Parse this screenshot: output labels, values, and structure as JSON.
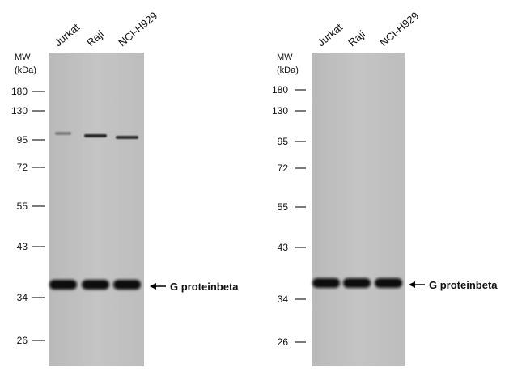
{
  "panels": [
    {
      "mw_label": "MW",
      "unit_label": "(kDa)",
      "markers": [
        "180",
        "130",
        "95",
        "72",
        "55",
        "43",
        "34",
        "26"
      ],
      "lanes": [
        "Jurkat",
        "Raji",
        "NCI-H929"
      ],
      "band_label": "G proteinbeta"
    },
    {
      "mw_label": "MW",
      "unit_label": "(kDa)",
      "markers": [
        "180",
        "130",
        "95",
        "72",
        "55",
        "43",
        "34",
        "26"
      ],
      "lanes": [
        "Jurkat",
        "Raji",
        "NCI-H929"
      ],
      "band_label": "G proteinbeta"
    }
  ]
}
